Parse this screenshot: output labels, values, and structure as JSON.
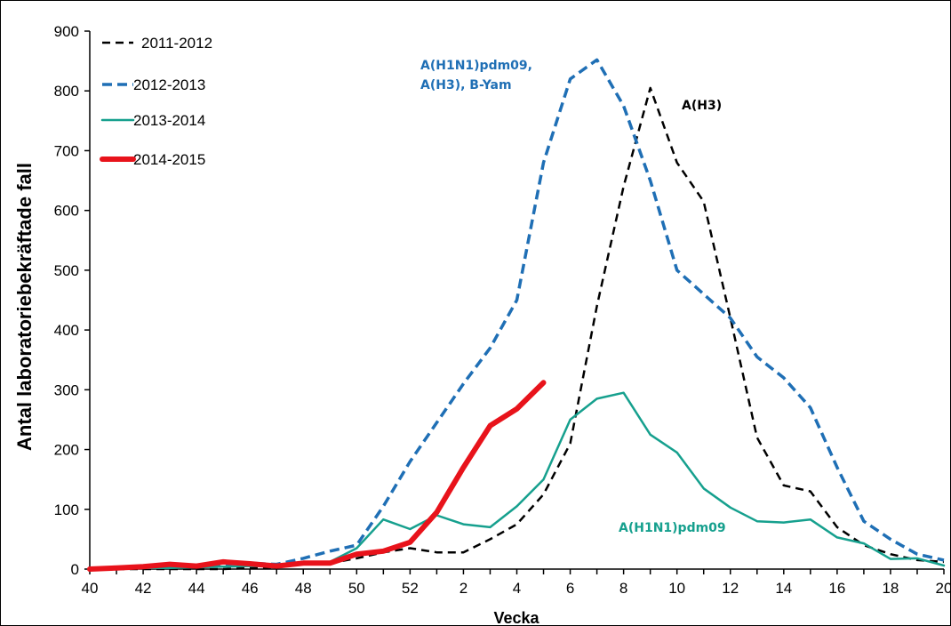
{
  "chart_data": {
    "type": "line",
    "title": "",
    "xlabel": "Vecka",
    "ylabel": "Antal laboratoriebekräftade fall",
    "ylim": [
      0,
      900
    ],
    "yticks": [
      0,
      100,
      200,
      300,
      400,
      500,
      600,
      700,
      800,
      900
    ],
    "weeks": [
      "40",
      "41",
      "42",
      "43",
      "44",
      "45",
      "46",
      "47",
      "48",
      "49",
      "50",
      "51",
      "52",
      "1",
      "2",
      "3",
      "4",
      "5",
      "6",
      "7",
      "8",
      "9",
      "10",
      "11",
      "12",
      "13",
      "14",
      "15",
      "16",
      "17",
      "18",
      "19",
      "20"
    ],
    "xtick_labels": [
      "40",
      "",
      "42",
      "",
      "44",
      "",
      "46",
      "",
      "48",
      "",
      "50",
      "",
      "52",
      "",
      "2",
      "",
      "4",
      "",
      "6",
      "",
      "8",
      "",
      "10",
      "",
      "12",
      "",
      "14",
      "",
      "16",
      "",
      "18",
      "",
      "20"
    ],
    "grid": false,
    "legend_position": "top-left",
    "series": [
      {
        "name": "2011-2012",
        "color": "#000000",
        "style": "dashed",
        "width": 2.5,
        "values": [
          0,
          0,
          0,
          0,
          0,
          0,
          2,
          3,
          8,
          10,
          18,
          28,
          35,
          28,
          28,
          50,
          75,
          125,
          210,
          440,
          640,
          805,
          680,
          615,
          420,
          220,
          140,
          130,
          70,
          40,
          25,
          15,
          12
        ]
      },
      {
        "name": "2012-2013",
        "color": "#1f6fb5",
        "style": "dashed",
        "width": 3.5,
        "values": [
          0,
          2,
          3,
          5,
          6,
          8,
          10,
          8,
          18,
          30,
          40,
          105,
          180,
          245,
          310,
          370,
          450,
          680,
          820,
          852,
          775,
          650,
          500,
          460,
          420,
          355,
          320,
          270,
          170,
          80,
          50,
          25,
          15
        ]
      },
      {
        "name": "2013-2014",
        "color": "#16a08e",
        "style": "solid",
        "width": 2.5,
        "values": [
          0,
          1,
          2,
          2,
          3,
          4,
          5,
          5,
          8,
          12,
          35,
          83,
          67,
          90,
          75,
          70,
          105,
          150,
          250,
          285,
          295,
          225,
          195,
          135,
          103,
          80,
          78,
          83,
          53,
          43,
          17,
          18,
          6
        ]
      },
      {
        "name": "2014-2015",
        "color": "#e8131b",
        "style": "solid",
        "width": 6,
        "values": [
          0,
          2,
          4,
          8,
          5,
          12,
          9,
          5,
          10,
          10,
          25,
          30,
          45,
          95,
          170,
          240,
          268,
          312
        ]
      }
    ],
    "annotations": [
      {
        "text": "A(H1N1)pdm09,",
        "color": "#1f6fb5"
      },
      {
        "text": "A(H3), B-Yam",
        "color": "#1f6fb5"
      },
      {
        "text": "A(H3)",
        "color": "#000000"
      },
      {
        "text": "A(H1N1)pdm09",
        "color": "#16a08e"
      }
    ]
  }
}
